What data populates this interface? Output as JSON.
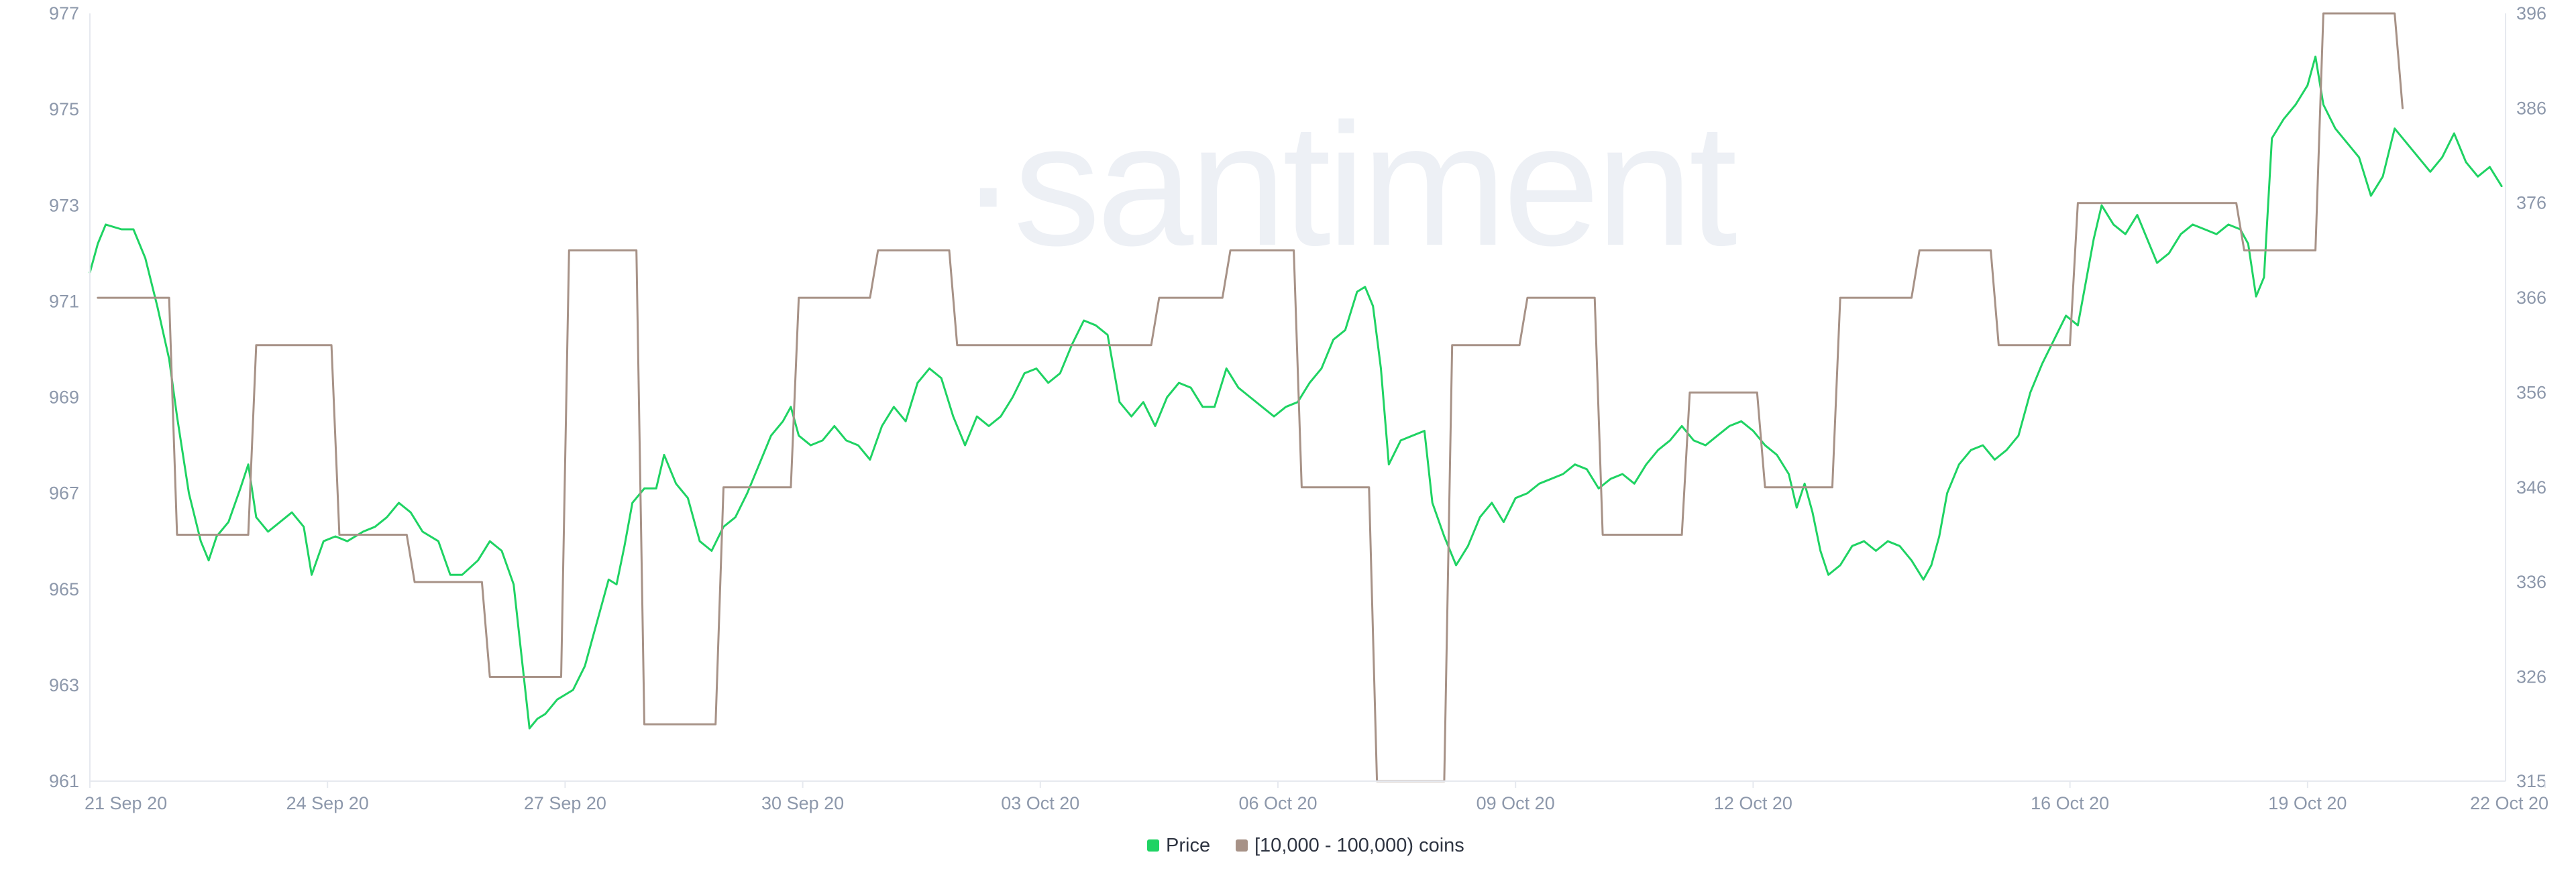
{
  "chart_data": {
    "type": "line",
    "watermark": "·santiment",
    "x_ticks": [
      "21 Sep 20",
      "24 Sep 20",
      "27 Sep 20",
      "30 Sep 20",
      "03 Oct 20",
      "06 Oct 20",
      "09 Oct 20",
      "12 Oct 20",
      "16 Oct 20",
      "19 Oct 20",
      "22 Oct 20"
    ],
    "x_range_days": [
      0,
      30.5
    ],
    "y_left": {
      "ticks": [
        "977",
        "975",
        "973",
        "971",
        "969",
        "967",
        "965",
        "963",
        "961"
      ],
      "min": 961,
      "max": 977
    },
    "y_right": {
      "ticks": [
        "396",
        "386",
        "376",
        "366",
        "356",
        "346",
        "336",
        "326",
        "315"
      ],
      "min": 315,
      "max": 396
    },
    "legend_position": "bottom-center",
    "grid": false,
    "series": [
      {
        "name": "Price",
        "color": "#1fd363",
        "axis": "left",
        "points": [
          [
            0.0,
            971.6
          ],
          [
            0.1,
            972.2
          ],
          [
            0.2,
            972.6
          ],
          [
            0.4,
            972.5
          ],
          [
            0.55,
            972.5
          ],
          [
            0.7,
            971.9
          ],
          [
            0.85,
            970.9
          ],
          [
            1.0,
            969.8
          ],
          [
            1.1,
            968.6
          ],
          [
            1.25,
            967.0
          ],
          [
            1.4,
            966.0
          ],
          [
            1.5,
            965.6
          ],
          [
            1.6,
            966.1
          ],
          [
            1.75,
            966.4
          ],
          [
            1.9,
            967.1
          ],
          [
            2.0,
            967.6
          ],
          [
            2.1,
            966.5
          ],
          [
            2.25,
            966.2
          ],
          [
            2.4,
            966.4
          ],
          [
            2.55,
            966.6
          ],
          [
            2.7,
            966.3
          ],
          [
            2.8,
            965.3
          ],
          [
            2.95,
            966.0
          ],
          [
            3.1,
            966.1
          ],
          [
            3.25,
            966.0
          ],
          [
            3.45,
            966.2
          ],
          [
            3.6,
            966.3
          ],
          [
            3.75,
            966.5
          ],
          [
            3.9,
            966.8
          ],
          [
            4.05,
            966.6
          ],
          [
            4.2,
            966.2
          ],
          [
            4.4,
            966.0
          ],
          [
            4.55,
            965.3
          ],
          [
            4.7,
            965.3
          ],
          [
            4.9,
            965.6
          ],
          [
            5.05,
            966.0
          ],
          [
            5.2,
            965.8
          ],
          [
            5.35,
            965.1
          ],
          [
            5.45,
            963.6
          ],
          [
            5.55,
            962.1
          ],
          [
            5.65,
            962.3
          ],
          [
            5.75,
            962.4
          ],
          [
            5.9,
            962.7
          ],
          [
            6.1,
            962.9
          ],
          [
            6.25,
            963.4
          ],
          [
            6.35,
            964.0
          ],
          [
            6.45,
            964.6
          ],
          [
            6.55,
            965.2
          ],
          [
            6.65,
            965.1
          ],
          [
            6.75,
            965.9
          ],
          [
            6.85,
            966.8
          ],
          [
            7.0,
            967.1
          ],
          [
            7.15,
            967.1
          ],
          [
            7.25,
            967.8
          ],
          [
            7.4,
            967.2
          ],
          [
            7.55,
            966.9
          ],
          [
            7.7,
            966.0
          ],
          [
            7.85,
            965.8
          ],
          [
            8.0,
            966.3
          ],
          [
            8.15,
            966.5
          ],
          [
            8.3,
            967.0
          ],
          [
            8.45,
            967.6
          ],
          [
            8.6,
            968.2
          ],
          [
            8.75,
            968.5
          ],
          [
            8.85,
            968.8
          ],
          [
            8.95,
            968.2
          ],
          [
            9.1,
            968.0
          ],
          [
            9.25,
            968.1
          ],
          [
            9.4,
            968.4
          ],
          [
            9.55,
            968.1
          ],
          [
            9.7,
            968.0
          ],
          [
            9.85,
            967.7
          ],
          [
            10.0,
            968.4
          ],
          [
            10.15,
            968.8
          ],
          [
            10.3,
            968.5
          ],
          [
            10.45,
            969.3
          ],
          [
            10.6,
            969.6
          ],
          [
            10.75,
            969.4
          ],
          [
            10.9,
            968.6
          ],
          [
            11.05,
            968.0
          ],
          [
            11.2,
            968.6
          ],
          [
            11.35,
            968.4
          ],
          [
            11.5,
            968.6
          ],
          [
            11.65,
            969.0
          ],
          [
            11.8,
            969.5
          ],
          [
            11.95,
            969.6
          ],
          [
            12.1,
            969.3
          ],
          [
            12.25,
            969.5
          ],
          [
            12.4,
            970.1
          ],
          [
            12.55,
            970.6
          ],
          [
            12.7,
            970.5
          ],
          [
            12.85,
            970.3
          ],
          [
            13.0,
            968.9
          ],
          [
            13.15,
            968.6
          ],
          [
            13.3,
            968.9
          ],
          [
            13.45,
            968.4
          ],
          [
            13.6,
            969.0
          ],
          [
            13.75,
            969.3
          ],
          [
            13.9,
            969.2
          ],
          [
            14.05,
            968.8
          ],
          [
            14.2,
            968.8
          ],
          [
            14.35,
            969.6
          ],
          [
            14.5,
            969.2
          ],
          [
            14.65,
            969.0
          ],
          [
            14.8,
            968.8
          ],
          [
            14.95,
            968.6
          ],
          [
            15.1,
            968.8
          ],
          [
            15.25,
            968.9
          ],
          [
            15.4,
            969.3
          ],
          [
            15.55,
            969.6
          ],
          [
            15.7,
            970.2
          ],
          [
            15.85,
            970.4
          ],
          [
            16.0,
            971.2
          ],
          [
            16.1,
            971.3
          ],
          [
            16.2,
            970.9
          ],
          [
            16.3,
            969.6
          ],
          [
            16.4,
            967.6
          ],
          [
            16.55,
            968.1
          ],
          [
            16.7,
            968.2
          ],
          [
            16.85,
            968.3
          ],
          [
            16.95,
            966.8
          ],
          [
            17.1,
            966.1
          ],
          [
            17.25,
            965.5
          ],
          [
            17.4,
            965.9
          ],
          [
            17.55,
            966.5
          ],
          [
            17.7,
            966.8
          ],
          [
            17.85,
            966.4
          ],
          [
            18.0,
            966.9
          ],
          [
            18.15,
            967.0
          ],
          [
            18.3,
            967.2
          ],
          [
            18.45,
            967.3
          ],
          [
            18.6,
            967.4
          ],
          [
            18.75,
            967.6
          ],
          [
            18.9,
            967.5
          ],
          [
            19.05,
            967.1
          ],
          [
            19.2,
            967.3
          ],
          [
            19.35,
            967.4
          ],
          [
            19.5,
            967.2
          ],
          [
            19.65,
            967.6
          ],
          [
            19.8,
            967.9
          ],
          [
            19.95,
            968.1
          ],
          [
            20.1,
            968.4
          ],
          [
            20.25,
            968.1
          ],
          [
            20.4,
            968.0
          ],
          [
            20.55,
            968.2
          ],
          [
            20.7,
            968.4
          ],
          [
            20.85,
            968.5
          ],
          [
            21.0,
            968.3
          ],
          [
            21.15,
            968.0
          ],
          [
            21.3,
            967.8
          ],
          [
            21.45,
            967.4
          ],
          [
            21.55,
            966.7
          ],
          [
            21.65,
            967.2
          ],
          [
            21.75,
            966.6
          ],
          [
            21.85,
            965.8
          ],
          [
            21.95,
            965.3
          ],
          [
            22.1,
            965.5
          ],
          [
            22.25,
            965.9
          ],
          [
            22.4,
            966.0
          ],
          [
            22.55,
            965.8
          ],
          [
            22.7,
            966.0
          ],
          [
            22.85,
            965.9
          ],
          [
            23.0,
            965.6
          ],
          [
            23.15,
            965.2
          ],
          [
            23.25,
            965.5
          ],
          [
            23.35,
            966.1
          ],
          [
            23.45,
            967.0
          ],
          [
            23.6,
            967.6
          ],
          [
            23.75,
            967.9
          ],
          [
            23.9,
            968.0
          ],
          [
            24.05,
            967.7
          ],
          [
            24.2,
            967.9
          ],
          [
            24.35,
            968.2
          ],
          [
            24.5,
            969.1
          ],
          [
            24.65,
            969.7
          ],
          [
            24.8,
            970.2
          ],
          [
            24.95,
            970.7
          ],
          [
            25.1,
            970.5
          ],
          [
            25.2,
            971.4
          ],
          [
            25.3,
            972.3
          ],
          [
            25.4,
            973.0
          ],
          [
            25.55,
            972.6
          ],
          [
            25.7,
            972.4
          ],
          [
            25.85,
            972.8
          ],
          [
            26.0,
            972.2
          ],
          [
            26.1,
            971.8
          ],
          [
            26.25,
            972.0
          ],
          [
            26.4,
            972.4
          ],
          [
            26.55,
            972.6
          ],
          [
            26.7,
            972.5
          ],
          [
            26.85,
            972.4
          ],
          [
            27.0,
            972.6
          ],
          [
            27.15,
            972.5
          ],
          [
            27.25,
            972.2
          ],
          [
            27.35,
            971.1
          ],
          [
            27.45,
            971.5
          ],
          [
            27.55,
            974.4
          ],
          [
            27.7,
            974.8
          ],
          [
            27.85,
            975.1
          ],
          [
            28.0,
            975.5
          ],
          [
            28.1,
            976.1
          ],
          [
            28.2,
            975.1
          ],
          [
            28.35,
            974.6
          ],
          [
            28.5,
            974.3
          ],
          [
            28.65,
            974.0
          ],
          [
            28.8,
            973.2
          ],
          [
            28.95,
            973.6
          ],
          [
            29.1,
            974.6
          ],
          [
            29.25,
            974.3
          ],
          [
            29.4,
            974.0
          ],
          [
            29.55,
            973.7
          ],
          [
            29.7,
            974.0
          ],
          [
            29.85,
            974.5
          ],
          [
            30.0,
            973.9
          ],
          [
            30.15,
            973.6
          ],
          [
            30.3,
            973.8
          ],
          [
            30.45,
            973.4
          ]
        ]
      },
      {
        "name": "[10,000 - 100,000) coins",
        "color": "#a79287",
        "axis": "right",
        "points": [
          [
            0.1,
            366
          ],
          [
            1.0,
            366
          ],
          [
            1.1,
            341
          ],
          [
            2.0,
            341
          ],
          [
            2.1,
            361
          ],
          [
            3.05,
            361
          ],
          [
            3.15,
            341
          ],
          [
            4.0,
            341
          ],
          [
            4.1,
            336
          ],
          [
            4.95,
            336
          ],
          [
            5.05,
            326
          ],
          [
            5.95,
            326
          ],
          [
            6.05,
            371
          ],
          [
            6.9,
            371
          ],
          [
            7.0,
            321
          ],
          [
            7.9,
            321
          ],
          [
            8.0,
            346
          ],
          [
            8.85,
            346
          ],
          [
            8.95,
            366
          ],
          [
            9.85,
            366
          ],
          [
            9.95,
            371
          ],
          [
            10.85,
            371
          ],
          [
            10.95,
            361
          ],
          [
            13.4,
            361
          ],
          [
            13.5,
            366
          ],
          [
            14.3,
            366
          ],
          [
            14.4,
            371
          ],
          [
            15.2,
            371
          ],
          [
            15.3,
            346
          ],
          [
            16.15,
            346
          ],
          [
            16.25,
            315
          ],
          [
            17.1,
            315
          ],
          [
            17.2,
            361
          ],
          [
            18.05,
            361
          ],
          [
            18.15,
            366
          ],
          [
            19.0,
            366
          ],
          [
            19.1,
            341
          ],
          [
            20.1,
            341
          ],
          [
            20.2,
            356
          ],
          [
            21.05,
            356
          ],
          [
            21.15,
            346
          ],
          [
            22.0,
            346
          ],
          [
            22.1,
            366
          ],
          [
            23.0,
            366
          ],
          [
            23.1,
            371
          ],
          [
            24.0,
            371
          ],
          [
            24.1,
            361
          ],
          [
            25.0,
            361
          ],
          [
            25.1,
            376
          ],
          [
            27.1,
            376
          ],
          [
            27.2,
            371
          ],
          [
            28.1,
            371
          ],
          [
            28.2,
            396
          ],
          [
            29.1,
            396
          ],
          [
            29.2,
            386
          ]
        ]
      }
    ]
  }
}
